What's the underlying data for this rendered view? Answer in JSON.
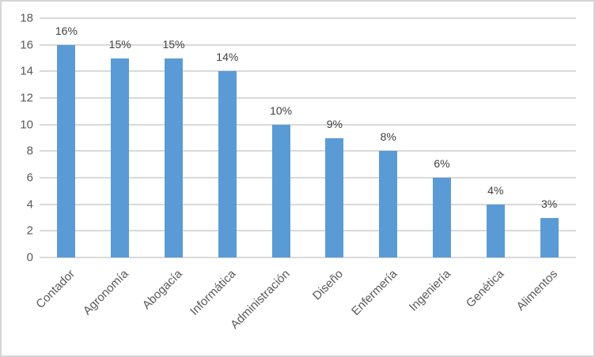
{
  "chart_data": {
    "type": "bar",
    "title": "",
    "xlabel": "",
    "ylabel": "",
    "categories": [
      "Contador",
      "Agronomía",
      "Abogacía",
      "Informática",
      "Administración",
      "Diseño",
      "Enfermería",
      "Ingeniería",
      "Genética",
      "Alimentos"
    ],
    "values": [
      16,
      15,
      15,
      14,
      10,
      9,
      8,
      6,
      4,
      3
    ],
    "value_labels": [
      "16%",
      "15%",
      "15%",
      "14%",
      "10%",
      "9%",
      "8%",
      "6%",
      "4%",
      "3%"
    ],
    "ylim": [
      0,
      18
    ],
    "yticks": [
      0,
      2,
      4,
      6,
      8,
      10,
      12,
      14,
      16,
      18
    ],
    "grid": true,
    "legend": false,
    "colors": {
      "bar": "#5B9BD5",
      "gridline": "#D9D9D9",
      "axis_text": "#595959",
      "data_label": "#404040",
      "border": "#D5D5D5",
      "background": "#FFFFFF"
    }
  }
}
